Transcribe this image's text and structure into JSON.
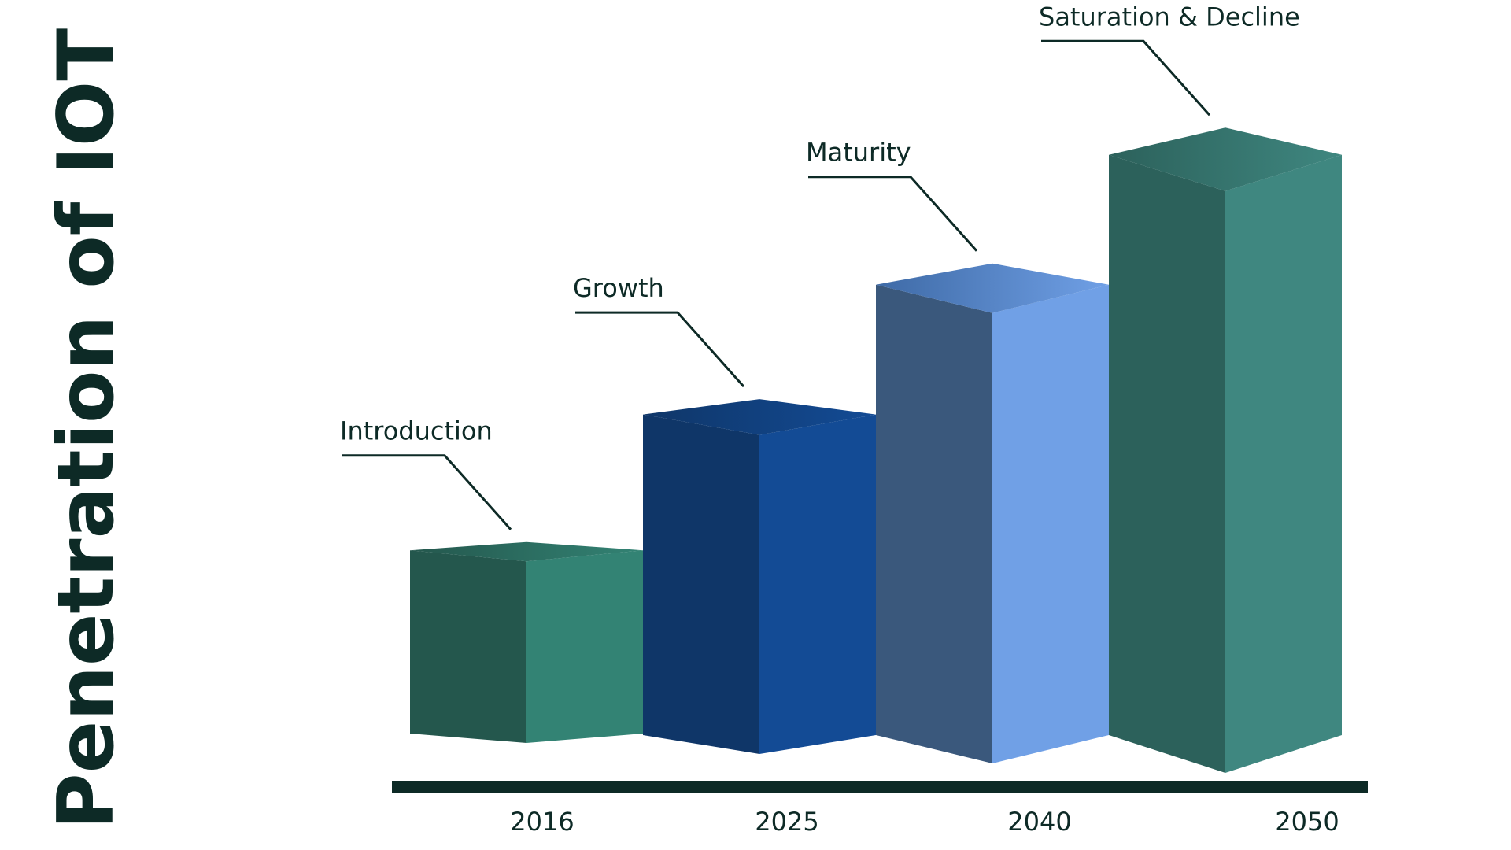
{
  "chart_data": {
    "type": "bar",
    "title": "",
    "xlabel": "",
    "ylabel": "Penetration of IOT",
    "categories": [
      "2016",
      "2025",
      "2040",
      "2050"
    ],
    "values": [
      24,
      42,
      59,
      76
    ],
    "ylim": [
      0,
      100
    ],
    "annotations": [
      "Introduction",
      "Growth",
      "Maturity",
      "Saturation & Decline"
    ],
    "grid": false,
    "legend": "none",
    "series": [
      {
        "values": [
          24,
          42,
          59,
          76
        ],
        "colors": [
          {
            "left": "#24574d",
            "right": "#338374",
            "top": "#2e7466"
          },
          {
            "left": "#0f3668",
            "right": "#134b95",
            "top": "#123f7a"
          },
          {
            "left": "#3a587c",
            "right": "#70a0e6",
            "top": "#5683c0"
          },
          {
            "left": "#2c615b",
            "right": "#3f8780",
            "top": "#3a7b75"
          }
        ]
      }
    ],
    "baseline_color": "#0d2a26"
  }
}
